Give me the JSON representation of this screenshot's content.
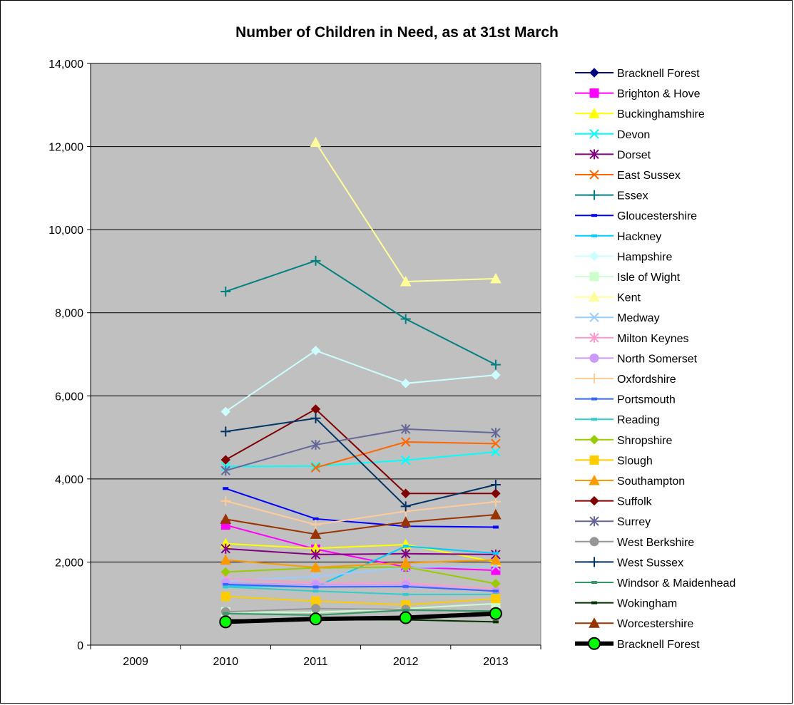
{
  "chart_data": {
    "type": "line",
    "title": "Number of Children in Need, as at 31st March",
    "xlabel": "",
    "ylabel": "",
    "categories": [
      "2009",
      "2010",
      "2011",
      "2012",
      "2013"
    ],
    "ylim": [
      0,
      14000
    ],
    "yticks": [
      "0",
      "2,000",
      "4,000",
      "6,000",
      "8,000",
      "10,000",
      "12,000",
      "14,000"
    ],
    "grid": true,
    "legend_position": "right",
    "plot_background": "#c0c0c0",
    "series": [
      {
        "name": "Bracknell Forest",
        "color": "#000080",
        "marker": "diamond",
        "values": [
          null,
          560,
          630,
          660,
          760
        ]
      },
      {
        "name": "Brighton & Hove",
        "color": "#ff00ff",
        "marker": "square",
        "values": [
          null,
          2890,
          2310,
          1880,
          1800
        ]
      },
      {
        "name": "Buckinghamshire",
        "color": "#ffff00",
        "marker": "triangle",
        "values": [
          null,
          2440,
          2330,
          2420,
          2000
        ]
      },
      {
        "name": "Devon",
        "color": "#00ffff",
        "marker": "x",
        "values": [
          null,
          4300,
          4310,
          4450,
          4650
        ]
      },
      {
        "name": "Dorset",
        "color": "#800080",
        "marker": "star",
        "values": [
          null,
          2320,
          2180,
          2200,
          2180
        ]
      },
      {
        "name": "East Sussex",
        "color": "#ff6600",
        "marker": "x",
        "values": [
          null,
          null,
          4270,
          4890,
          4850
        ]
      },
      {
        "name": "Essex",
        "color": "#008080",
        "marker": "plus",
        "values": [
          null,
          8510,
          9250,
          7850,
          6750
        ]
      },
      {
        "name": "Gloucestershire",
        "color": "#0000ff",
        "marker": "dash",
        "values": [
          null,
          3770,
          3040,
          2860,
          2840
        ]
      },
      {
        "name": "Hackney",
        "color": "#00ccff",
        "marker": "dash",
        "values": [
          null,
          1430,
          1400,
          2380,
          2210
        ]
      },
      {
        "name": "Hampshire",
        "color": "#ccffff",
        "marker": "diamond",
        "values": [
          null,
          5620,
          7090,
          6300,
          6500
        ]
      },
      {
        "name": "Isle of Wight",
        "color": "#ccffcc",
        "marker": "square",
        "values": [
          null,
          800,
          790,
          880,
          1000
        ]
      },
      {
        "name": "Kent",
        "color": "#ffff99",
        "marker": "triangle",
        "values": [
          null,
          null,
          12100,
          8750,
          8820
        ]
      },
      {
        "name": "Medway",
        "color": "#99ccff",
        "marker": "x",
        "values": [
          null,
          1550,
          1650,
          1870,
          1900
        ]
      },
      {
        "name": "Milton Keynes",
        "color": "#ff99cc",
        "marker": "star",
        "values": [
          null,
          1600,
          1500,
          1500,
          1350
        ]
      },
      {
        "name": "North Somerset",
        "color": "#cc99ff",
        "marker": "circle",
        "values": [
          null,
          1500,
          1450,
          1450,
          1300
        ]
      },
      {
        "name": "Oxfordshire",
        "color": "#ffcc99",
        "marker": "plus",
        "values": [
          null,
          3470,
          2900,
          3220,
          3450
        ]
      },
      {
        "name": "Portsmouth",
        "color": "#3366ff",
        "marker": "dash",
        "values": [
          null,
          1460,
          1400,
          1410,
          1300
        ]
      },
      {
        "name": "Reading",
        "color": "#33cccc",
        "marker": "dash",
        "values": [
          null,
          1400,
          1300,
          1220,
          1220
        ]
      },
      {
        "name": "Shropshire",
        "color": "#99cc00",
        "marker": "diamond",
        "values": [
          null,
          1760,
          1860,
          1880,
          1480
        ]
      },
      {
        "name": "Slough",
        "color": "#ffcc00",
        "marker": "square",
        "values": [
          null,
          1170,
          1060,
          970,
          1120
        ]
      },
      {
        "name": "Southampton",
        "color": "#ff9900",
        "marker": "triangle",
        "values": [
          null,
          2050,
          1870,
          1980,
          2050
        ]
      },
      {
        "name": "Suffolk",
        "color": "#800000",
        "marker": "diamond",
        "values": [
          null,
          4460,
          5680,
          3650,
          3650
        ]
      },
      {
        "name": "Surrey",
        "color": "#666699",
        "marker": "star",
        "values": [
          null,
          4200,
          4820,
          5200,
          5110
        ]
      },
      {
        "name": "West Berkshire",
        "color": "#969696",
        "marker": "circle",
        "values": [
          null,
          800,
          880,
          860,
          800
        ]
      },
      {
        "name": "West Sussex",
        "color": "#003366",
        "marker": "plus",
        "values": [
          null,
          5140,
          5460,
          3340,
          3860
        ]
      },
      {
        "name": "Windsor & Maidenhead",
        "color": "#339966",
        "marker": "dash",
        "values": [
          null,
          760,
          720,
          840,
          820
        ]
      },
      {
        "name": "Wokingham",
        "color": "#003300",
        "marker": "dash",
        "values": [
          null,
          610,
          610,
          610,
          560
        ]
      },
      {
        "name": "Worcestershire",
        "color": "#993300",
        "marker": "triangle",
        "values": [
          null,
          3030,
          2670,
          2960,
          3140
        ]
      },
      {
        "name": "Bracknell Forest",
        "color": "#000000",
        "marker": "circle-bold",
        "fill": "#00ff00",
        "values": [
          null,
          560,
          630,
          660,
          760
        ]
      }
    ]
  }
}
